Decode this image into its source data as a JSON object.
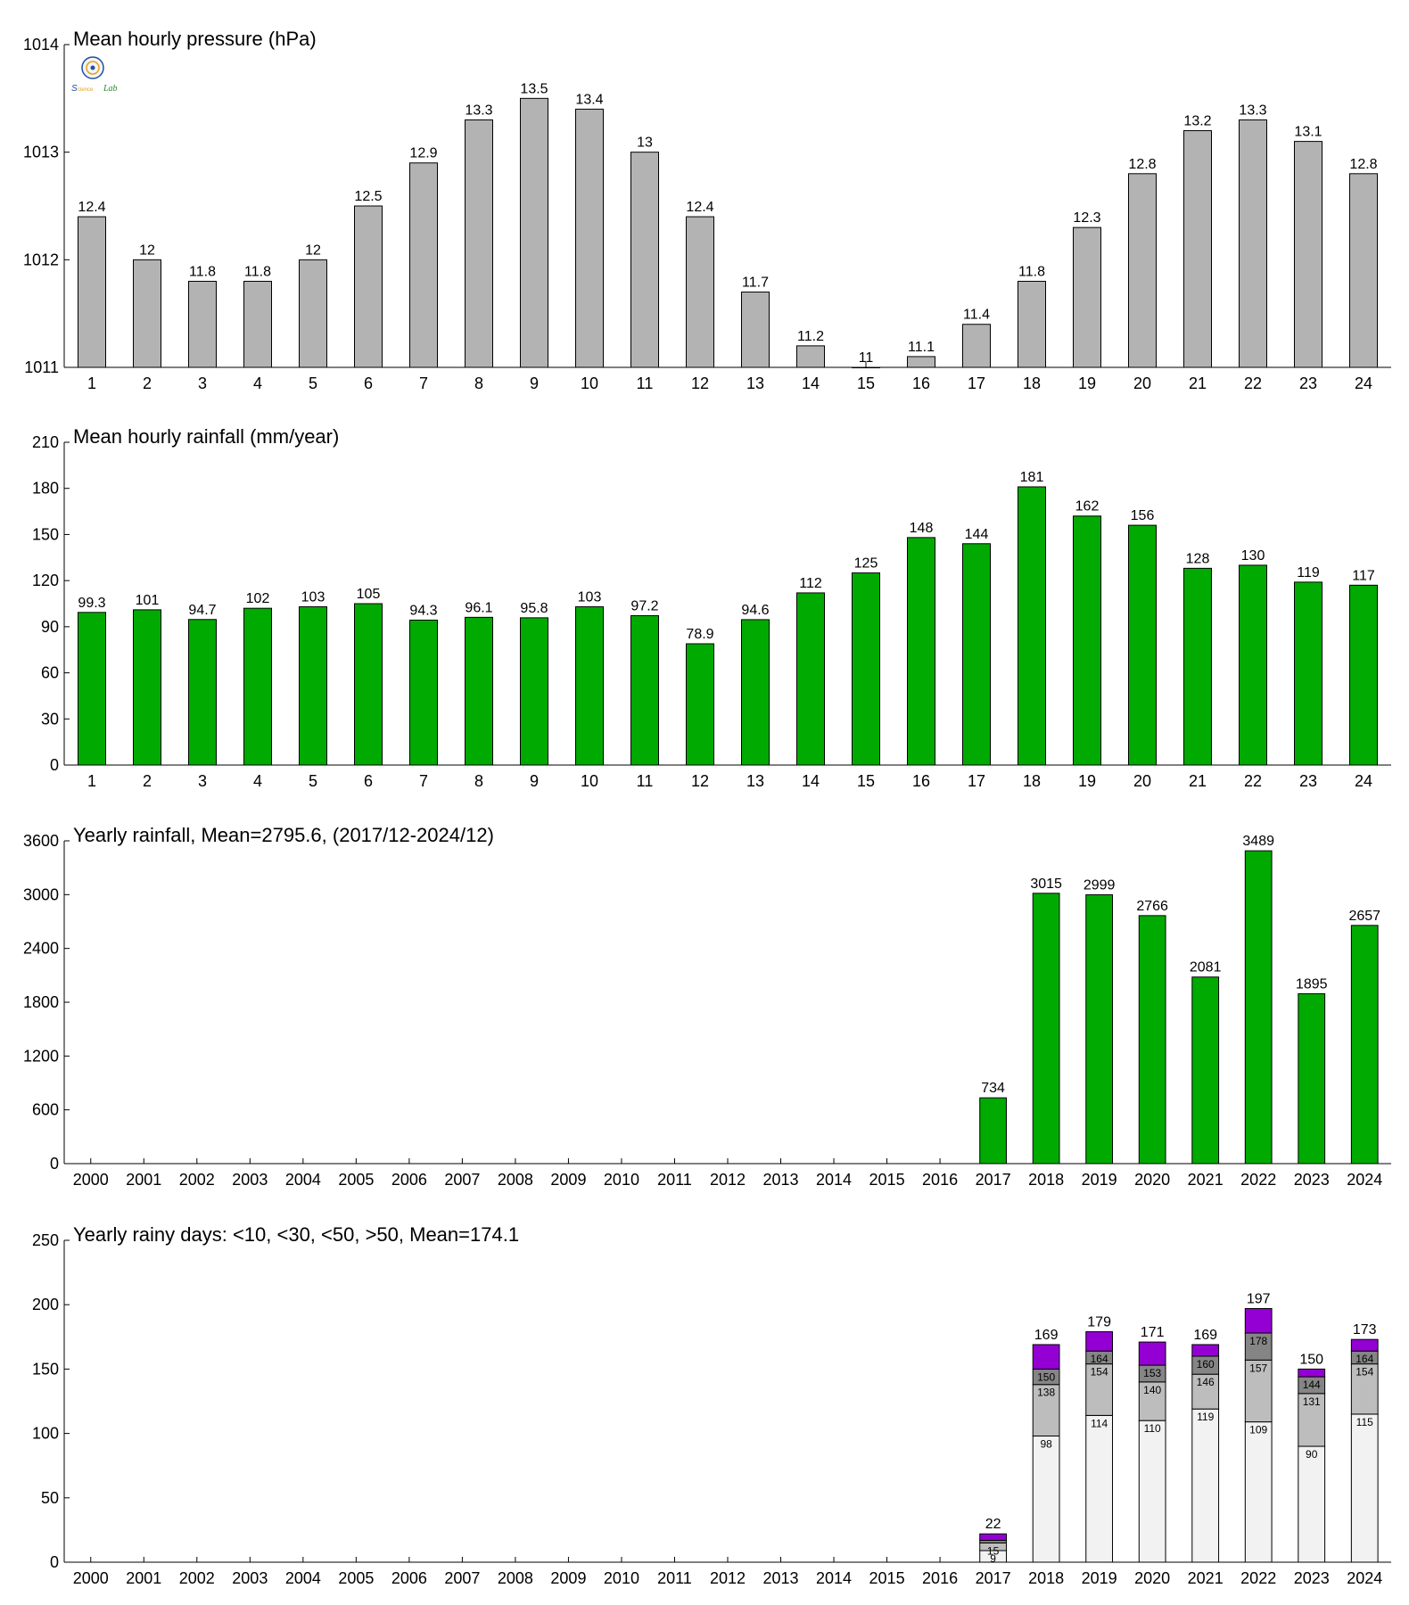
{
  "logo": {
    "text": "Science Lab",
    "colors": [
      "#1f4fa8",
      "#e0a21a",
      "#2a8a2a"
    ]
  },
  "chart_data": [
    {
      "id": "pressure",
      "type": "bar",
      "title": "Mean hourly pressure (hPa)",
      "categories": [
        "1",
        "2",
        "3",
        "4",
        "5",
        "6",
        "7",
        "8",
        "9",
        "10",
        "11",
        "12",
        "13",
        "14",
        "15",
        "16",
        "17",
        "18",
        "19",
        "20",
        "21",
        "22",
        "23",
        "24"
      ],
      "values": [
        1012.4,
        1012.0,
        1011.8,
        1011.8,
        1012.0,
        1012.5,
        1012.9,
        1013.3,
        1013.5,
        1013.4,
        1013.0,
        1012.4,
        1011.7,
        1011.2,
        1011.0,
        1011.1,
        1011.4,
        1011.8,
        1012.3,
        1012.8,
        1013.2,
        1013.3,
        1013.1,
        1012.8
      ],
      "value_labels": [
        "12.4",
        "12",
        "11.8",
        "11.8",
        "12",
        "12.5",
        "12.9",
        "13.3",
        "13.5",
        "13.4",
        "13",
        "12.4",
        "11.7",
        "11.2",
        "11",
        "11.1",
        "11.4",
        "11.8",
        "12.3",
        "12.8",
        "13.2",
        "13.3",
        "13.1",
        "12.8"
      ],
      "ylim": [
        1011,
        1014
      ],
      "yticks": [
        "1011",
        "1012",
        "1013",
        "1014"
      ],
      "color": "#b3b3b3"
    },
    {
      "id": "hourly-rain",
      "type": "bar",
      "title": "Mean hourly rainfall (mm/year)",
      "categories": [
        "1",
        "2",
        "3",
        "4",
        "5",
        "6",
        "7",
        "8",
        "9",
        "10",
        "11",
        "12",
        "13",
        "14",
        "15",
        "16",
        "17",
        "18",
        "19",
        "20",
        "21",
        "22",
        "23",
        "24"
      ],
      "values": [
        99.3,
        101,
        94.7,
        102,
        103,
        105,
        94.3,
        96.1,
        95.8,
        103,
        97.2,
        78.9,
        94.6,
        112,
        125,
        148,
        144,
        181,
        162,
        156,
        128,
        130,
        119,
        117
      ],
      "value_labels": [
        "99.3",
        "101",
        "94.7",
        "102",
        "103",
        "105",
        "94.3",
        "96.1",
        "95.8",
        "103",
        "97.2",
        "78.9",
        "94.6",
        "112",
        "125",
        "148",
        "144",
        "181",
        "162",
        "156",
        "128",
        "130",
        "119",
        "117"
      ],
      "ylim": [
        0,
        210
      ],
      "yticks": [
        "0",
        "30",
        "60",
        "90",
        "120",
        "150",
        "180",
        "210"
      ],
      "color": "#00aa00"
    },
    {
      "id": "yearly-rain",
      "type": "bar",
      "title": "Yearly rainfall, Mean=2795.6, (2017/12-2024/12)",
      "categories": [
        "2000",
        "2001",
        "2002",
        "2003",
        "2004",
        "2005",
        "2006",
        "2007",
        "2008",
        "2009",
        "2010",
        "2011",
        "2012",
        "2013",
        "2014",
        "2015",
        "2016",
        "2017",
        "2018",
        "2019",
        "2020",
        "2021",
        "2022",
        "2023",
        "2024"
      ],
      "values": [
        null,
        null,
        null,
        null,
        null,
        null,
        null,
        null,
        null,
        null,
        null,
        null,
        null,
        null,
        null,
        null,
        null,
        734,
        3015,
        2999,
        2766,
        2081,
        3489,
        1895,
        2657
      ],
      "value_labels": [
        "",
        "",
        "",
        "",
        "",
        "",
        "",
        "",
        "",
        "",
        "",
        "",
        "",
        "",
        "",
        "",
        "",
        "734",
        "3015",
        "2999",
        "2766",
        "2081",
        "3489",
        "1895",
        "2657"
      ],
      "ylim": [
        0,
        3600
      ],
      "yticks": [
        "0",
        "600",
        "1200",
        "1800",
        "2400",
        "3000",
        "3600"
      ],
      "color": "#00aa00"
    },
    {
      "id": "rainy-days",
      "type": "stacked-bar",
      "title": "Yearly rainy days: <10, <30, <50, >50, Mean=174.1",
      "categories": [
        "2000",
        "2001",
        "2002",
        "2003",
        "2004",
        "2005",
        "2006",
        "2007",
        "2008",
        "2009",
        "2010",
        "2011",
        "2012",
        "2013",
        "2014",
        "2015",
        "2016",
        "2017",
        "2018",
        "2019",
        "2020",
        "2021",
        "2022",
        "2023",
        "2024"
      ],
      "series": [
        {
          "name": "<10",
          "color": "#f2f2f2",
          "cumulative": [
            null,
            null,
            null,
            null,
            null,
            null,
            null,
            null,
            null,
            null,
            null,
            null,
            null,
            null,
            null,
            null,
            null,
            9,
            98,
            114,
            110,
            119,
            109,
            90,
            115
          ],
          "labels": [
            "",
            "",
            "",
            "",
            "",
            "",
            "",
            "",
            "",
            "",
            "",
            "",
            "",
            "",
            "",
            "",
            "",
            "9",
            "98",
            "114",
            "110",
            "119",
            "109",
            "90",
            "115"
          ]
        },
        {
          "name": "<30",
          "color": "#bdbdbd",
          "cumulative": [
            null,
            null,
            null,
            null,
            null,
            null,
            null,
            null,
            null,
            null,
            null,
            null,
            null,
            null,
            null,
            null,
            null,
            15,
            138,
            154,
            140,
            146,
            157,
            131,
            154
          ],
          "labels": [
            "",
            "",
            "",
            "",
            "",
            "",
            "",
            "",
            "",
            "",
            "",
            "",
            "",
            "",
            "",
            "",
            "",
            "15",
            "138",
            "154",
            "140",
            "146",
            "157",
            "131",
            "154"
          ]
        },
        {
          "name": "<50",
          "color": "#858585",
          "cumulative": [
            null,
            null,
            null,
            null,
            null,
            null,
            null,
            null,
            null,
            null,
            null,
            null,
            null,
            null,
            null,
            null,
            null,
            17,
            150,
            164,
            153,
            160,
            178,
            144,
            164
          ],
          "labels": [
            "",
            "",
            "",
            "",
            "",
            "",
            "",
            "",
            "",
            "",
            "",
            "",
            "",
            "",
            "",
            "",
            "",
            "",
            "150",
            "164",
            "153",
            "160",
            "178",
            "144",
            "164"
          ]
        },
        {
          "name": ">50",
          "color": "#9400d3",
          "cumulative": [
            null,
            null,
            null,
            null,
            null,
            null,
            null,
            null,
            null,
            null,
            null,
            null,
            null,
            null,
            null,
            null,
            null,
            22,
            169,
            179,
            171,
            169,
            197,
            150,
            173
          ],
          "labels": [
            "",
            "",
            "",
            "",
            "",
            "",
            "",
            "",
            "",
            "",
            "",
            "",
            "",
            "",
            "",
            "",
            "",
            "22",
            "169",
            "179",
            "171",
            "169",
            "197",
            "150",
            "173"
          ]
        }
      ],
      "ylim": [
        0,
        250
      ],
      "yticks": [
        "0",
        "50",
        "100",
        "150",
        "200",
        "250"
      ]
    }
  ]
}
